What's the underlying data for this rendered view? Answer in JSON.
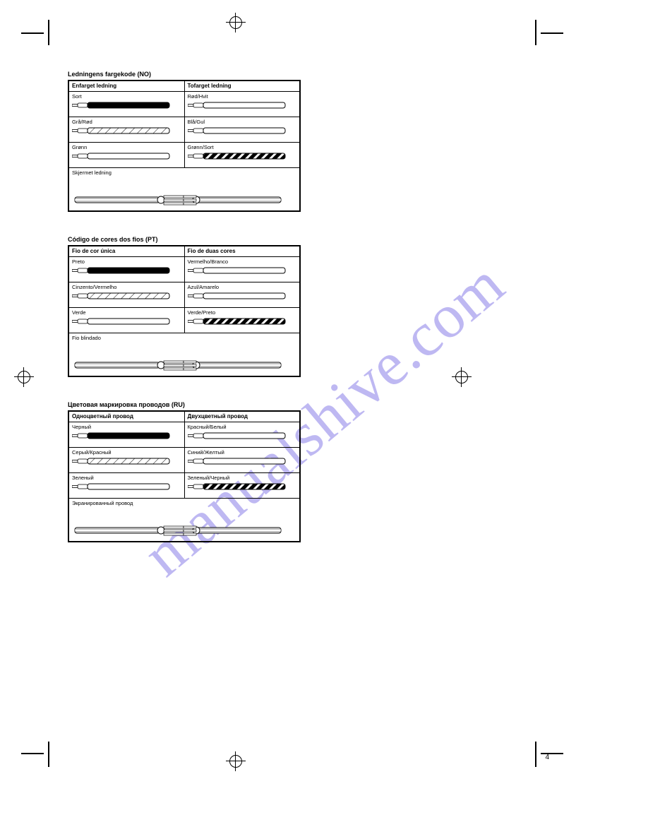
{
  "page_number": "4",
  "watermark": "manualshive.com",
  "sections": [
    {
      "lang": "no",
      "title": "Ledningens fargekode (NO)",
      "header_left": "Enfarget ledning",
      "header_right": "Tofarget ledning",
      "cells": [
        {
          "label": "Sort",
          "wire": "solid_black"
        },
        {
          "label": "Rød/Hvit",
          "wire": "outline"
        },
        {
          "label": "Grå/Rød",
          "wire": "stripe_light"
        },
        {
          "label": "Blå/Gul",
          "wire": "outline"
        },
        {
          "label": "Grønn",
          "wire": "outline"
        },
        {
          "label": "Grønn/Sort",
          "wire": "stripe_dark"
        }
      ],
      "shielded": {
        "label": "Skjermet ledning",
        "type": "shielded"
      }
    },
    {
      "lang": "pt",
      "title": "Código de cores dos fios (PT)",
      "header_left": "Fio de cor única",
      "header_right": "Fio de duas cores",
      "cells": [
        {
          "label": "Preto",
          "wire": "solid_black"
        },
        {
          "label": "Vermelho/Branco",
          "wire": "outline"
        },
        {
          "label": "Cinzento/Vermelho",
          "wire": "stripe_light"
        },
        {
          "label": "Azul/Amarelo",
          "wire": "outline"
        },
        {
          "label": "Verde",
          "wire": "outline"
        },
        {
          "label": "Verde/Preto",
          "wire": "stripe_dark"
        }
      ],
      "shielded": {
        "label": "Fio blindado",
        "type": "shielded"
      }
    },
    {
      "lang": "ru",
      "title": "Цветовая маркировка проводов (RU)",
      "header_left": "Одноцветный провод",
      "header_right": "Двухцветный провод",
      "cells": [
        {
          "label": "Черный",
          "wire": "solid_black"
        },
        {
          "label": "Красный/Белый",
          "wire": "outline"
        },
        {
          "label": "Серый/Красный",
          "wire": "stripe_light"
        },
        {
          "label": "Синий/Желтый",
          "wire": "outline"
        },
        {
          "label": "Зеленый",
          "wire": "outline"
        },
        {
          "label": "Зеленый/Черный",
          "wire": "stripe_dark"
        }
      ],
      "shielded": {
        "label": "Экранированный провод",
        "type": "shielded"
      }
    }
  ],
  "wire_styles": {
    "solid_black": {
      "body_fill": "#000000",
      "body_stroke": "#000000",
      "pattern": "none"
    },
    "outline": {
      "body_fill": "#ffffff",
      "body_stroke": "#000000",
      "pattern": "none"
    },
    "stripe_light": {
      "body_fill": "#ffffff",
      "body_stroke": "#000000",
      "pattern": "diag_light"
    },
    "stripe_dark": {
      "body_fill": "#ffffff",
      "body_stroke": "#000000",
      "pattern": "diag_dark"
    }
  },
  "colors": {
    "line": "#000000",
    "bg": "#ffffff",
    "watermark": "#8a7fe8"
  }
}
